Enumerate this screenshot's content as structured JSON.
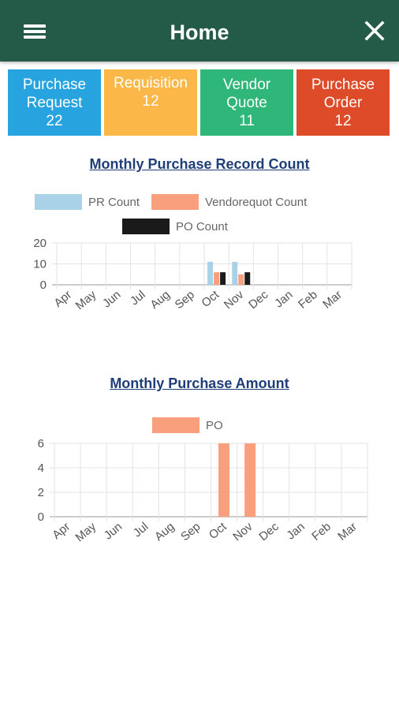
{
  "header": {
    "title": "Home",
    "menu_icon": "hamburger-menu-icon",
    "close_icon": "close-icon",
    "background": "#235a48"
  },
  "tiles": [
    {
      "label_line1": "Purchase",
      "label_line2": "Request",
      "count": "22",
      "color": "#27a4e0"
    },
    {
      "label_line1": "Requisition",
      "label_line2": "",
      "count": "12",
      "color": "#fbb848"
    },
    {
      "label_line1": "Vendor",
      "label_line2": "Quote",
      "count": "11",
      "color": "#2fb779"
    },
    {
      "label_line1": "Purchase",
      "label_line2": "Order",
      "count": "12",
      "color": "#dd4b28"
    }
  ],
  "chart_data": [
    {
      "type": "bar",
      "title": "Monthly Purchase Record Count",
      "categories": [
        "Apr",
        "May",
        "Jun",
        "Jul",
        "Aug",
        "Sep",
        "Oct",
        "Nov",
        "Dec",
        "Jan",
        "Feb",
        "Mar"
      ],
      "series": [
        {
          "name": "PR Count",
          "color": "#a9d1e8",
          "values": [
            0,
            0,
            0,
            0,
            0,
            0,
            11,
            11,
            0,
            0,
            0,
            0
          ]
        },
        {
          "name": "Vendorequot Count",
          "color": "#f99f7e",
          "values": [
            0,
            0,
            0,
            0,
            0,
            0,
            6,
            5,
            0,
            0,
            0,
            0
          ]
        },
        {
          "name": "PO Count",
          "color": "#1a1a1a",
          "values": [
            0,
            0,
            0,
            0,
            0,
            0,
            6,
            6,
            0,
            0,
            0,
            0
          ]
        }
      ],
      "ylim": [
        0,
        20
      ],
      "yticks": [
        "20",
        "10",
        "0"
      ],
      "grid": true,
      "legend": "top"
    },
    {
      "type": "bar",
      "title": "Monthly Purchase Amount",
      "categories": [
        "Apr",
        "May",
        "Jun",
        "Jul",
        "Aug",
        "Sep",
        "Oct",
        "Nov",
        "Dec",
        "Jan",
        "Feb",
        "Mar"
      ],
      "series": [
        {
          "name": "PO",
          "color": "#f99f7e",
          "values": [
            0,
            0,
            0,
            0,
            0,
            0,
            6,
            6,
            0,
            0,
            0,
            0
          ]
        }
      ],
      "ylim": [
        0,
        6
      ],
      "yticks": [
        "6",
        "4",
        "2",
        "0"
      ],
      "grid": true,
      "legend": "top"
    }
  ]
}
